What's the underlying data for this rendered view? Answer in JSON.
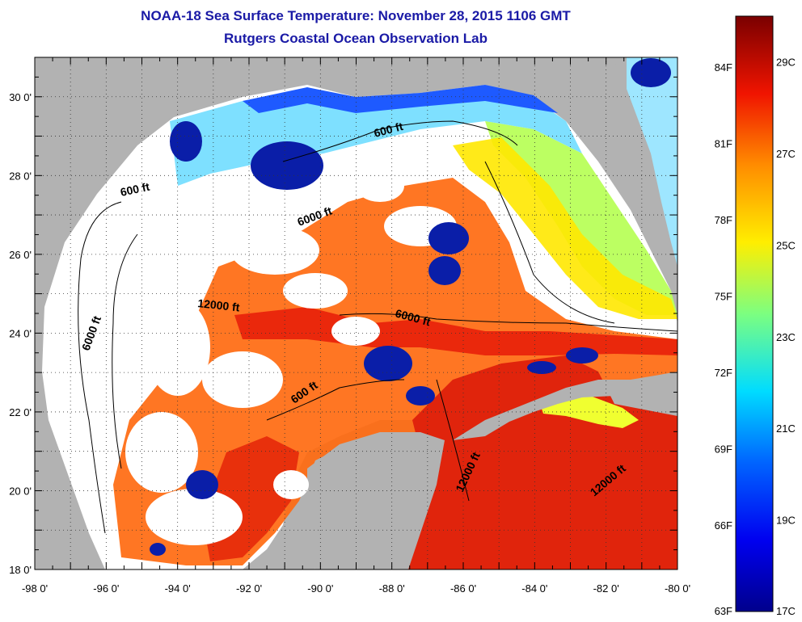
{
  "title": {
    "line1": "NOAA-18 Sea Surface Temperature:  November 28, 2015 1106 GMT",
    "line2": "Rutgers Coastal Ocean Observation Lab"
  },
  "map": {
    "lon_range": [
      -98,
      -80
    ],
    "lat_range": [
      18,
      31
    ],
    "x_ticks": [
      {
        "lon": -98,
        "label": "-98 0'"
      },
      {
        "lon": -96,
        "label": "-96 0'"
      },
      {
        "lon": -94,
        "label": "-94 0'"
      },
      {
        "lon": -92,
        "label": "-92 0'"
      },
      {
        "lon": -90,
        "label": "-90 0'"
      },
      {
        "lon": -88,
        "label": "-88 0'"
      },
      {
        "lon": -86,
        "label": "-86 0'"
      },
      {
        "lon": -84,
        "label": "-84 0'"
      },
      {
        "lon": -82,
        "label": "-82 0'"
      },
      {
        "lon": -80,
        "label": "-80 0'"
      }
    ],
    "y_ticks": [
      {
        "lat": 30,
        "label": "30 0'"
      },
      {
        "lat": 28,
        "label": "28 0'"
      },
      {
        "lat": 26,
        "label": "26 0'"
      },
      {
        "lat": 24,
        "label": "24 0'"
      },
      {
        "lat": 22,
        "label": "22 0'"
      },
      {
        "lat": 20,
        "label": "20 0'"
      },
      {
        "lat": 18,
        "label": "18 0'"
      }
    ],
    "contour_labels": [
      {
        "text": "600 ft"
      },
      {
        "text": "600 ft"
      },
      {
        "text": "600 ft"
      },
      {
        "text": "6000 ft"
      },
      {
        "text": "6000 ft"
      },
      {
        "text": "6000 ft"
      },
      {
        "text": "12000 ft"
      },
      {
        "text": "12000 ft"
      },
      {
        "text": "12000 ft"
      }
    ]
  },
  "colorbar": {
    "temp_range_c": [
      17,
      30
    ],
    "fahrenheit_labels": [
      "84F",
      "81F",
      "78F",
      "75F",
      "72F",
      "69F",
      "66F",
      "63F"
    ],
    "celsius_labels": [
      "29C",
      "27C",
      "25C",
      "23C",
      "21C",
      "19C",
      "17C"
    ]
  },
  "colors": {
    "land": "#b2b2b2",
    "cloud": "#ffffff",
    "title": "#1a1aa6"
  }
}
